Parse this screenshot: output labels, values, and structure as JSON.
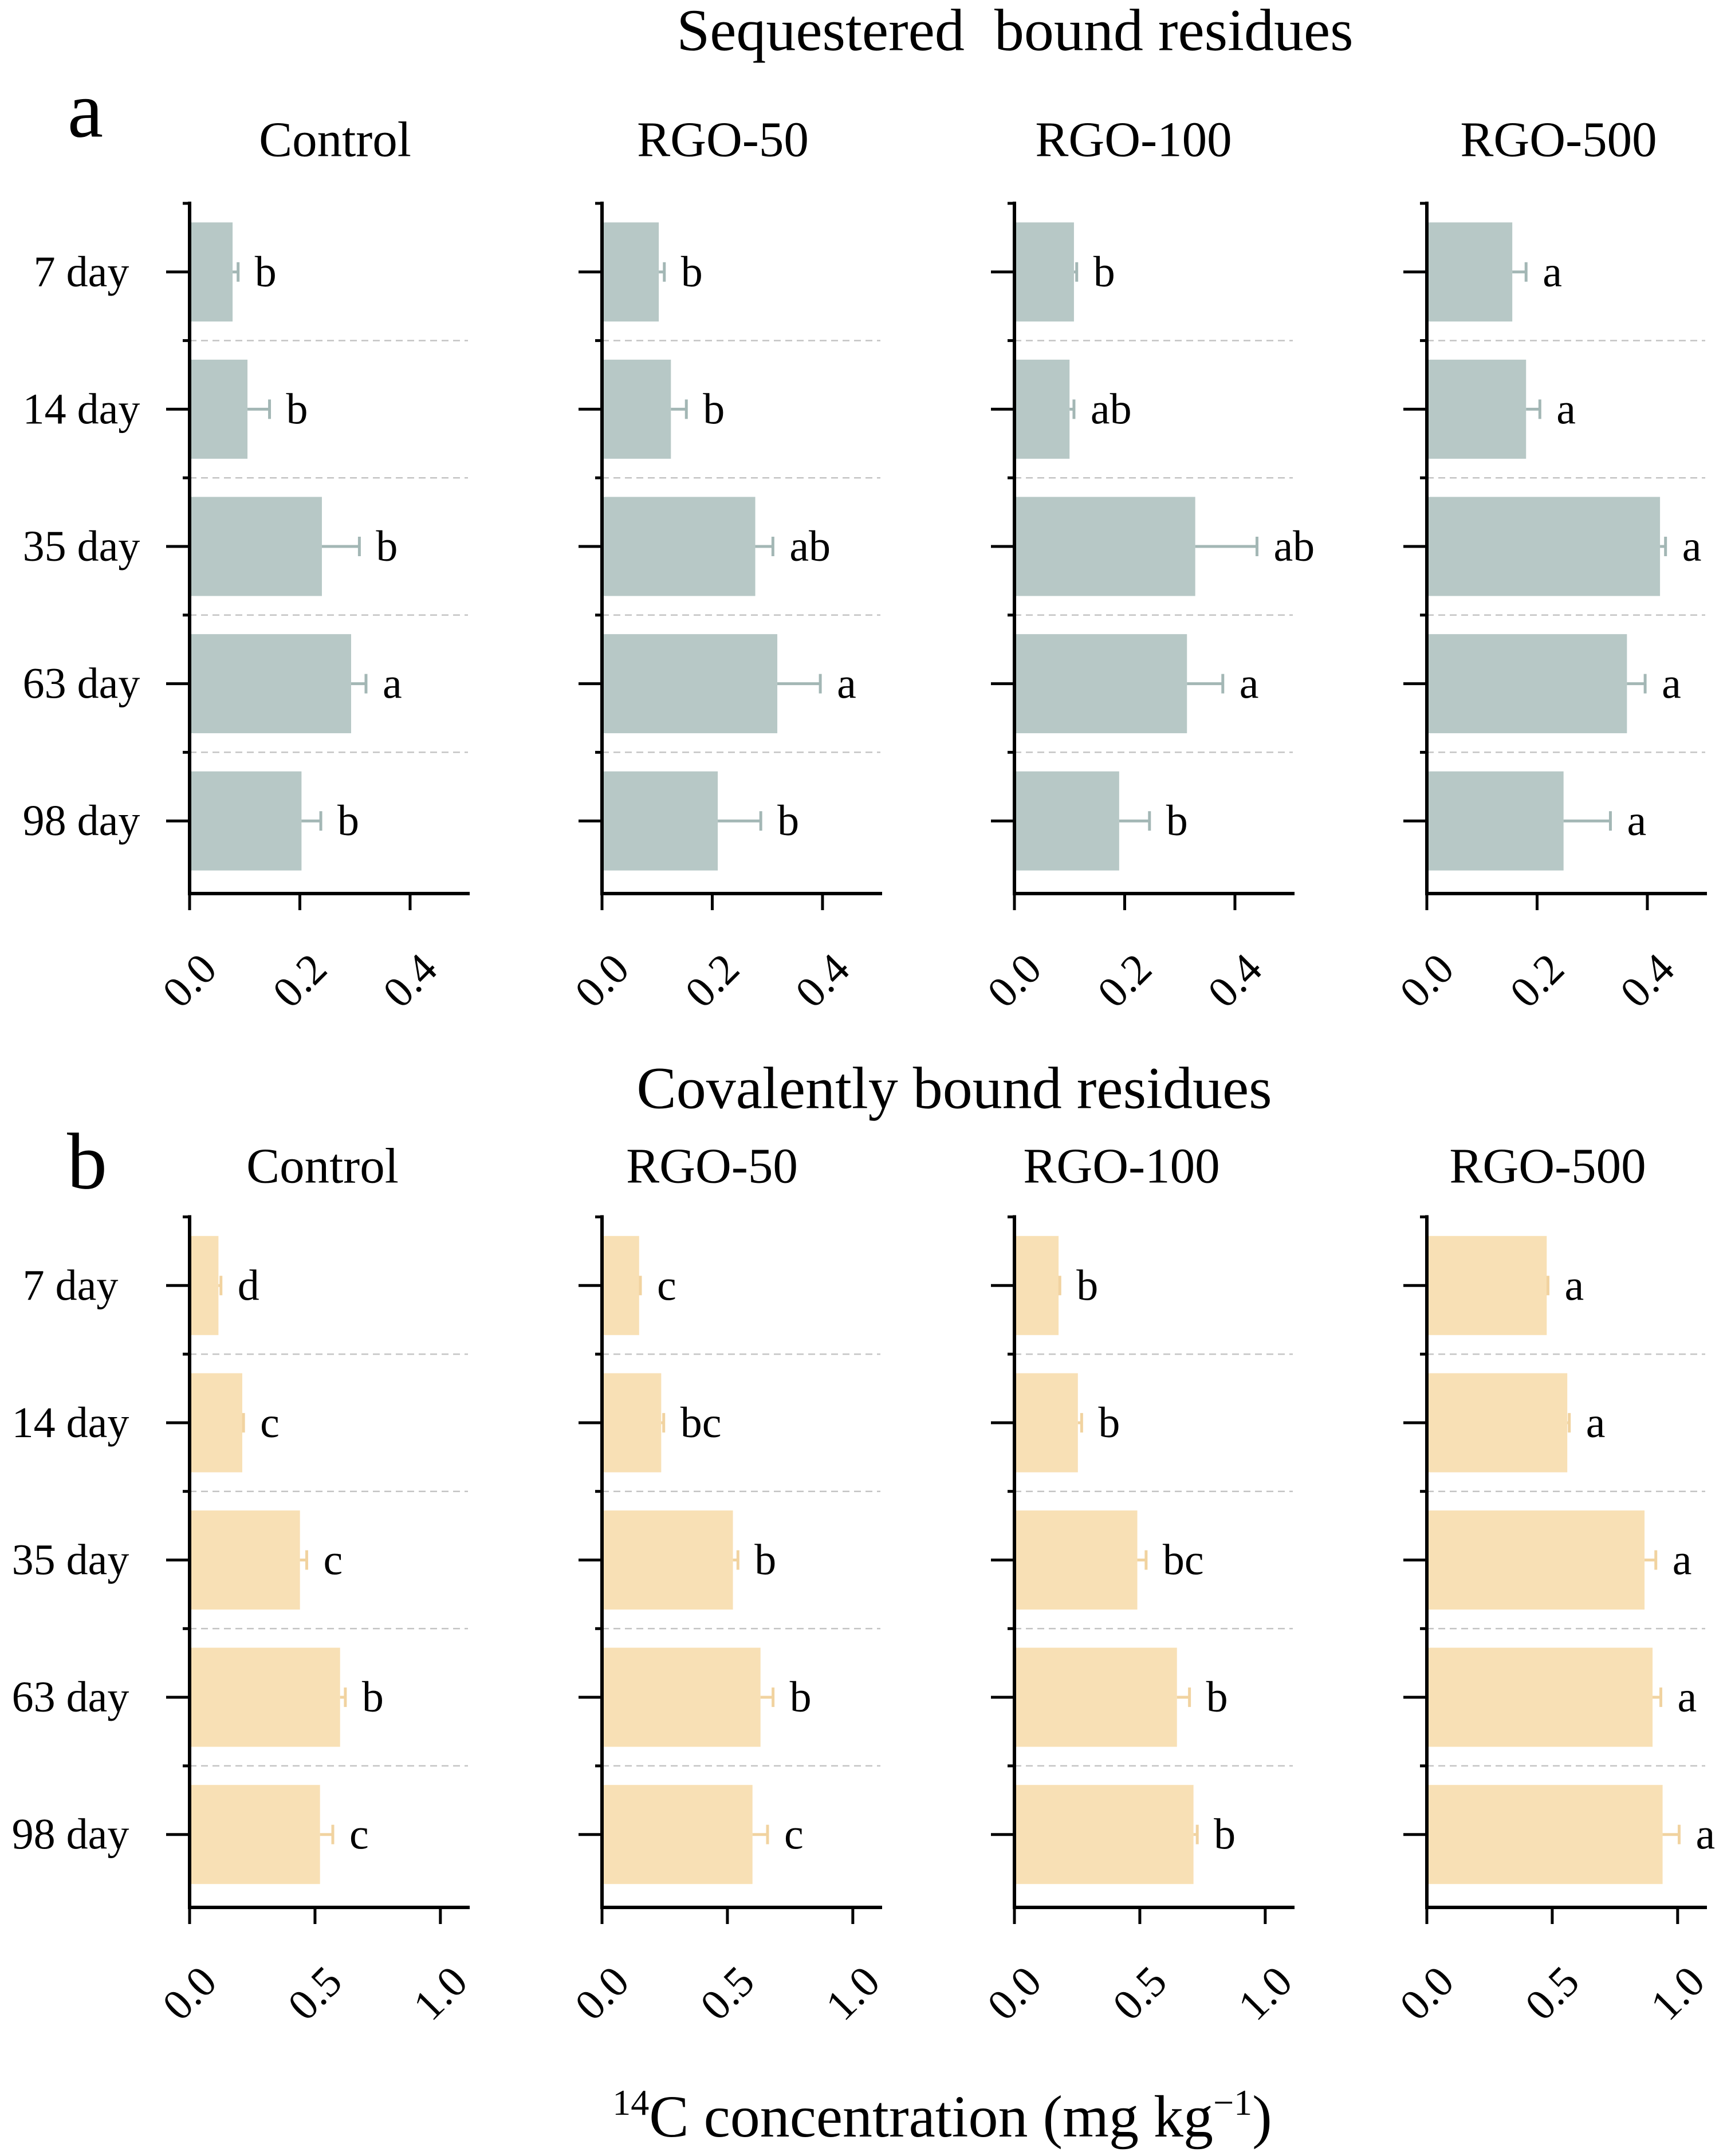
{
  "figure": {
    "xlabel": {
      "mass_number": "14",
      "text": "C concentration (mg kg",
      "exponent": "−1",
      "close": ")"
    }
  },
  "chart_data": [
    {
      "type": "bar",
      "panel_label": "a",
      "title": "Sequestered  bound residues",
      "categories": [
        "7 day",
        "14 day",
        "35 day",
        "63 day",
        "98 day"
      ],
      "xlim": [
        0,
        0.505
      ],
      "xticks": [
        0,
        0.2,
        0.4
      ],
      "xtick_labels": [
        "0.0",
        "0.2",
        "0.4"
      ],
      "grid": true,
      "bar_color": "#b7c8c6",
      "error_color": "#a3b7b5",
      "series": [
        {
          "name": "Control",
          "values": [
            0.078,
            0.105,
            0.24,
            0.293,
            0.203
          ],
          "errors": [
            0.01,
            0.04,
            0.068,
            0.027,
            0.035
          ],
          "letters": [
            "b",
            "b",
            "b",
            "a",
            "b"
          ]
        },
        {
          "name": "RGO-50",
          "values": [
            0.103,
            0.125,
            0.278,
            0.318,
            0.21
          ],
          "errors": [
            0.01,
            0.028,
            0.032,
            0.078,
            0.078
          ],
          "letters": [
            "b",
            "b",
            "ab",
            "a",
            "b"
          ]
        },
        {
          "name": "RGO-100",
          "values": [
            0.108,
            0.1,
            0.328,
            0.313,
            0.19
          ],
          "errors": [
            0.005,
            0.008,
            0.112,
            0.065,
            0.055
          ],
          "letters": [
            "b",
            "ab",
            "ab",
            "a",
            "b"
          ]
        },
        {
          "name": "RGO-500",
          "values": [
            0.155,
            0.18,
            0.423,
            0.363,
            0.248
          ],
          "errors": [
            0.025,
            0.025,
            0.01,
            0.033,
            0.085
          ],
          "letters": [
            "a",
            "a",
            "a",
            "a",
            "a"
          ]
        }
      ]
    },
    {
      "type": "bar",
      "panel_label": "b",
      "title": "Covalently bound residues",
      "categories": [
        "7 day",
        "14 day",
        "35 day",
        "63 day",
        "98 day"
      ],
      "xlim": [
        0,
        1.11
      ],
      "xticks": [
        0,
        0.5,
        1.0
      ],
      "xtick_labels": [
        "0.0",
        "0.5",
        "1.0"
      ],
      "grid": true,
      "bar_color": "#f8e0b5",
      "error_color": "#f1d3a0",
      "series": [
        {
          "name": "Control",
          "values": [
            0.115,
            0.21,
            0.44,
            0.6,
            0.52
          ],
          "errors": [
            0.01,
            0.005,
            0.027,
            0.021,
            0.051
          ],
          "letters": [
            "d",
            "c",
            "c",
            "b",
            "c"
          ]
        },
        {
          "name": "RGO-50",
          "values": [
            0.148,
            0.236,
            0.522,
            0.632,
            0.6
          ],
          "errors": [
            0.005,
            0.01,
            0.02,
            0.05,
            0.06
          ],
          "letters": [
            "c",
            "bc",
            "b",
            "b",
            "c"
          ]
        },
        {
          "name": "RGO-100",
          "values": [
            0.176,
            0.253,
            0.49,
            0.648,
            0.714
          ],
          "errors": [
            0.005,
            0.015,
            0.035,
            0.05,
            0.015
          ],
          "letters": [
            "b",
            "b",
            "bc",
            "b",
            "b"
          ]
        },
        {
          "name": "RGO-500",
          "values": [
            0.478,
            0.56,
            0.868,
            0.9,
            0.94
          ],
          "errors": [
            0.005,
            0.008,
            0.045,
            0.033,
            0.066
          ],
          "letters": [
            "a",
            "a",
            "a",
            "a",
            "a"
          ]
        }
      ]
    }
  ]
}
